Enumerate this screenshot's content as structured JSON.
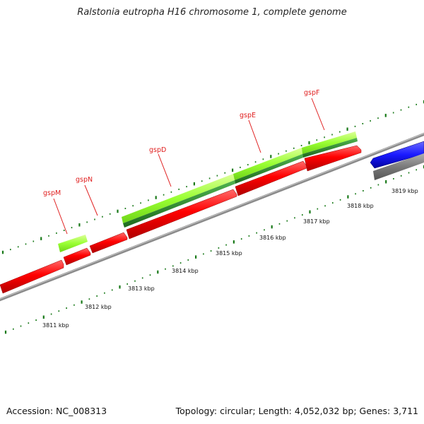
{
  "title": "Ralstonia eutropha H16 chromosome 1, complete genome",
  "footer": {
    "accession": "Accession: NC_008313",
    "summary": "Topology: circular; Length: 4,052,032 bp; Genes: 3,711"
  },
  "scale_labels": [
    "3811 kbp",
    "3812 kbp",
    "3813 kbp",
    "3814 kbp",
    "3815 kbp",
    "3816 kbp",
    "3817 kbp",
    "3818 kbp",
    "3819 kbp"
  ],
  "genes": [
    {
      "name": "gspM"
    },
    {
      "name": "gspN"
    },
    {
      "name": "gspD"
    },
    {
      "name": "gspE"
    },
    {
      "name": "gspF"
    }
  ],
  "colors": {
    "red_cds": "#ff0000",
    "light_green": "#99ff33",
    "dark_green": "#2e8b2e",
    "blue": "#1a1aff",
    "gray_backbone": "#888888",
    "tick_green": "#1a7a1a",
    "label_red": "#e02020"
  }
}
